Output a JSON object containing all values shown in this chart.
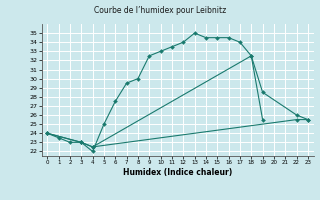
{
  "title": "Courbe de l’humidex pour Leibnitz",
  "xlabel": "Humidex (Indice chaleur)",
  "bg_color": "#cce8ec",
  "grid_color": "#ffffff",
  "line_color": "#1a7a6e",
  "xlim": [
    -0.5,
    23.5
  ],
  "ylim": [
    21.5,
    36.0
  ],
  "xticks": [
    0,
    1,
    2,
    3,
    4,
    5,
    6,
    7,
    8,
    9,
    10,
    11,
    12,
    13,
    14,
    15,
    16,
    17,
    18,
    19,
    20,
    21,
    22,
    23
  ],
  "yticks": [
    22,
    23,
    24,
    25,
    26,
    27,
    28,
    29,
    30,
    31,
    32,
    33,
    34,
    35
  ],
  "line1_x": [
    0,
    1,
    2,
    3,
    4,
    5,
    6,
    7,
    8,
    9,
    10,
    11,
    12,
    13,
    14,
    15,
    16,
    17,
    18,
    19
  ],
  "line1_y": [
    24.0,
    23.5,
    23.0,
    23.0,
    22.0,
    25.0,
    27.5,
    29.5,
    30.0,
    32.5,
    33.0,
    33.5,
    34.0,
    35.0,
    34.5,
    34.5,
    34.5,
    34.0,
    32.5,
    25.5
  ],
  "line2_x": [
    0,
    3,
    4,
    18,
    19,
    22,
    23
  ],
  "line2_y": [
    24.0,
    23.0,
    22.5,
    32.5,
    28.5,
    26.0,
    25.5
  ],
  "line3_x": [
    0,
    3,
    4,
    22,
    23
  ],
  "line3_y": [
    24.0,
    23.0,
    22.5,
    25.5,
    25.5
  ]
}
